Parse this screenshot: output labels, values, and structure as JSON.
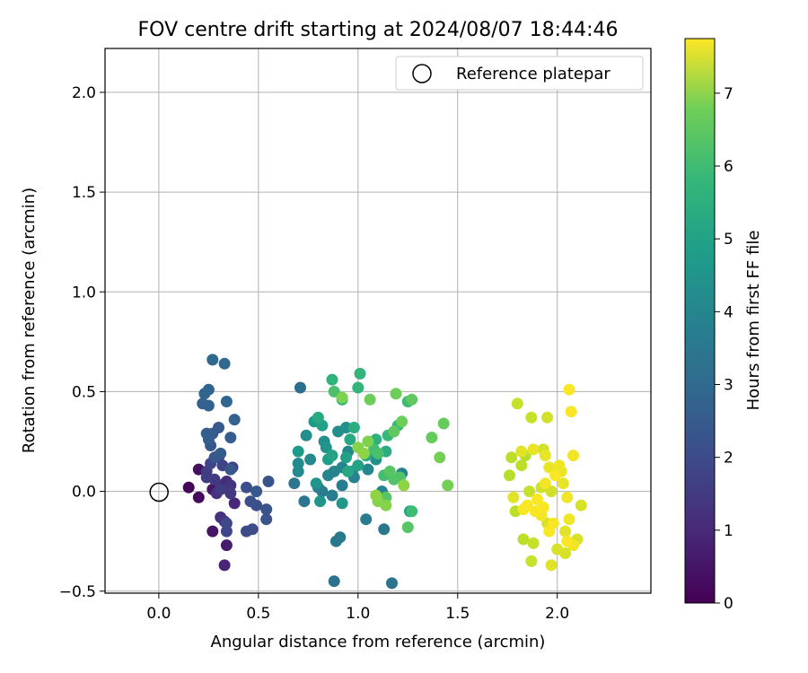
{
  "chart_data": {
    "type": "scatter",
    "title": "FOV centre drift starting at 2024/08/07 18:44:46",
    "xlabel": "Angular distance from reference (arcmin)",
    "ylabel": "Rotation from reference (arcmin)",
    "xlim": [
      -0.27,
      2.47
    ],
    "ylim": [
      -0.51,
      2.22
    ],
    "xticks": [
      0.0,
      0.5,
      1.0,
      1.5,
      2.0
    ],
    "xtick_labels": [
      "0.0",
      "0.5",
      "1.0",
      "1.5",
      "2.0"
    ],
    "yticks": [
      -0.5,
      0.0,
      0.5,
      1.0,
      1.5,
      2.0
    ],
    "ytick_labels": [
      "−0.5",
      "0.0",
      "0.5",
      "1.0",
      "1.5",
      "2.0"
    ],
    "grid": true,
    "legend": {
      "location": "top-right",
      "entries": [
        {
          "label": "Reference platepar",
          "marker": "open-circle"
        }
      ]
    },
    "reference_point": {
      "x": 0.0,
      "y": 0.0
    },
    "colorbar": {
      "label": "Hours from first FF file",
      "colormap": "viridis",
      "range": [
        0,
        7.75
      ],
      "ticks": [
        0,
        1,
        2,
        3,
        4,
        5,
        6,
        7
      ],
      "tick_labels": [
        "0",
        "1",
        "2",
        "3",
        "4",
        "5",
        "6",
        "7"
      ]
    },
    "points_columns": [
      "x",
      "y",
      "hours"
    ],
    "points": [
      [
        0.15,
        0.02,
        0.1
      ],
      [
        0.2,
        -0.03,
        0.2
      ],
      [
        0.2,
        0.11,
        0.3
      ],
      [
        0.27,
        -0.2,
        0.4
      ],
      [
        0.27,
        0.01,
        0.5
      ],
      [
        0.34,
        -0.27,
        0.6
      ],
      [
        0.33,
        -0.37,
        0.8
      ],
      [
        0.38,
        -0.06,
        0.9
      ],
      [
        0.34,
        0.05,
        1.0
      ],
      [
        0.31,
        0.03,
        1.0
      ],
      [
        0.29,
        -0.01,
        1.1
      ],
      [
        0.31,
        -0.13,
        1.1
      ],
      [
        0.33,
        -0.15,
        1.2
      ],
      [
        0.36,
        0.03,
        1.2
      ],
      [
        0.28,
        0.06,
        1.3
      ],
      [
        0.36,
        -0.01,
        1.3
      ],
      [
        0.24,
        0.07,
        1.4
      ],
      [
        0.31,
        0.01,
        1.4
      ],
      [
        0.24,
        0.1,
        1.4
      ],
      [
        0.37,
        0.12,
        1.5
      ],
      [
        0.3,
        0.17,
        1.5
      ],
      [
        0.32,
        0.13,
        1.6
      ],
      [
        0.26,
        0.14,
        1.6
      ],
      [
        0.3,
        0.18,
        1.6
      ],
      [
        0.34,
        -0.16,
        1.7
      ],
      [
        0.34,
        -0.2,
        1.7
      ],
      [
        0.44,
        -0.2,
        1.8
      ],
      [
        0.47,
        -0.19,
        1.8
      ],
      [
        0.44,
        0.02,
        1.9
      ],
      [
        0.49,
        -0.07,
        1.9
      ],
      [
        0.46,
        -0.05,
        1.9
      ],
      [
        0.55,
        0.05,
        2.0
      ],
      [
        0.54,
        -0.14,
        2.0
      ],
      [
        0.54,
        -0.09,
        2.0
      ],
      [
        0.49,
        0.0,
        2.1
      ],
      [
        0.36,
        0.11,
        2.1
      ],
      [
        0.28,
        0.17,
        2.1
      ],
      [
        0.26,
        0.23,
        2.1
      ],
      [
        0.31,
        0.19,
        2.2
      ],
      [
        0.27,
        0.29,
        2.2
      ],
      [
        0.3,
        0.32,
        2.2
      ],
      [
        0.24,
        0.29,
        2.3
      ],
      [
        0.36,
        0.27,
        2.3
      ],
      [
        0.25,
        0.26,
        2.3
      ],
      [
        0.38,
        0.36,
        2.4
      ],
      [
        0.25,
        0.43,
        2.4
      ],
      [
        0.22,
        0.44,
        2.4
      ],
      [
        0.34,
        0.45,
        2.5
      ],
      [
        0.25,
        0.51,
        2.5
      ],
      [
        0.23,
        0.49,
        2.5
      ],
      [
        0.27,
        0.66,
        2.6
      ],
      [
        0.33,
        0.64,
        2.6
      ],
      [
        0.71,
        0.52,
        2.8
      ],
      [
        0.88,
        -0.45,
        2.9
      ],
      [
        1.17,
        -0.46,
        2.9
      ],
      [
        0.68,
        0.04,
        3.0
      ],
      [
        0.73,
        -0.05,
        3.0
      ],
      [
        0.89,
        -0.25,
        3.1
      ],
      [
        0.91,
        -0.23,
        3.1
      ],
      [
        1.13,
        -0.19,
        3.1
      ],
      [
        1.04,
        -0.14,
        3.2
      ],
      [
        0.82,
        0.0,
        3.2
      ],
      [
        0.87,
        -0.02,
        3.3
      ],
      [
        0.92,
        0.03,
        3.3
      ],
      [
        0.8,
        0.02,
        3.3
      ],
      [
        1.12,
        0.0,
        3.4
      ],
      [
        1.22,
        0.09,
        3.4
      ],
      [
        0.98,
        0.07,
        3.4
      ],
      [
        0.85,
        0.08,
        3.5
      ],
      [
        0.88,
        0.1,
        3.5
      ],
      [
        0.92,
        0.12,
        3.5
      ],
      [
        0.97,
        0.1,
        3.6
      ],
      [
        1.05,
        0.11,
        3.6
      ],
      [
        0.95,
        0.2,
        3.6
      ],
      [
        0.76,
        0.16,
        3.7
      ],
      [
        0.7,
        0.1,
        3.7
      ],
      [
        0.7,
        0.14,
        3.7
      ],
      [
        0.74,
        0.28,
        3.8
      ],
      [
        0.83,
        0.25,
        3.8
      ],
      [
        0.9,
        0.3,
        3.8
      ],
      [
        0.94,
        0.32,
        3.9
      ],
      [
        1.09,
        0.16,
        3.9
      ],
      [
        0.81,
        -0.05,
        4.0
      ],
      [
        0.79,
        0.04,
        4.0
      ],
      [
        0.84,
        0.22,
        4.0
      ],
      [
        0.92,
        -0.06,
        4.1
      ],
      [
        0.7,
        0.2,
        4.2
      ],
      [
        0.78,
        0.35,
        4.2
      ],
      [
        0.85,
        0.16,
        4.3
      ],
      [
        1.26,
        -0.1,
        4.3
      ],
      [
        0.94,
        0.17,
        4.4
      ],
      [
        0.82,
        0.33,
        4.4
      ],
      [
        1.0,
        0.13,
        4.5
      ],
      [
        0.87,
        0.18,
        4.5
      ],
      [
        0.95,
        0.1,
        4.6
      ],
      [
        1.04,
        0.18,
        4.6
      ],
      [
        0.96,
        0.26,
        4.7
      ],
      [
        0.8,
        0.37,
        4.7
      ],
      [
        0.98,
        0.32,
        4.8
      ],
      [
        1.14,
        0.2,
        4.8
      ],
      [
        1.09,
        0.26,
        4.9
      ],
      [
        0.92,
        0.46,
        5.0
      ],
      [
        0.87,
        0.56,
        5.0
      ],
      [
        1.0,
        0.52,
        5.1
      ],
      [
        1.01,
        0.59,
        5.1
      ],
      [
        1.15,
        0.28,
        5.2
      ],
      [
        1.2,
        0.33,
        5.2
      ],
      [
        1.25,
        0.45,
        5.3
      ],
      [
        1.27,
        -0.1,
        5.3
      ],
      [
        1.13,
        0.08,
        5.4
      ],
      [
        1.08,
        0.21,
        5.4
      ],
      [
        1.1,
        0.19,
        5.5
      ],
      [
        0.88,
        0.5,
        5.5
      ],
      [
        1.18,
        0.06,
        5.6
      ],
      [
        1.21,
        0.07,
        5.6
      ],
      [
        1.14,
        -0.03,
        5.7
      ],
      [
        1.16,
        0.1,
        5.7
      ],
      [
        1.25,
        -0.18,
        5.7
      ],
      [
        1.27,
        0.46,
        5.8
      ],
      [
        1.18,
        0.3,
        5.8
      ],
      [
        1.37,
        0.27,
        5.9
      ],
      [
        1.43,
        0.34,
        5.9
      ],
      [
        1.06,
        0.46,
        6.0
      ],
      [
        1.19,
        0.49,
        6.0
      ],
      [
        1.22,
        0.35,
        6.0
      ],
      [
        1.41,
        0.17,
        6.1
      ],
      [
        1.45,
        0.03,
        6.1
      ],
      [
        1.05,
        0.25,
        6.2
      ],
      [
        0.92,
        0.47,
        6.2
      ],
      [
        1.0,
        0.22,
        6.3
      ],
      [
        1.1,
        -0.05,
        6.3
      ],
      [
        1.14,
        -0.07,
        6.3
      ],
      [
        1.09,
        -0.02,
        6.4
      ],
      [
        1.03,
        0.19,
        6.4
      ],
      [
        1.23,
        0.03,
        6.4
      ],
      [
        1.76,
        0.08,
        6.9
      ],
      [
        1.84,
        0.18,
        6.9
      ],
      [
        1.82,
        0.13,
        7.0
      ],
      [
        1.83,
        -0.24,
        7.0
      ],
      [
        1.79,
        -0.1,
        7.0
      ],
      [
        1.77,
        0.17,
        7.0
      ],
      [
        1.8,
        0.44,
        7.1
      ],
      [
        1.87,
        0.37,
        7.1
      ],
      [
        1.87,
        -0.35,
        7.1
      ],
      [
        1.88,
        -0.26,
        7.1
      ],
      [
        1.86,
        0.0,
        7.1
      ],
      [
        1.92,
        0.02,
        7.2
      ],
      [
        1.95,
        0.37,
        7.2
      ],
      [
        1.93,
        0.21,
        7.2
      ],
      [
        1.97,
        0.0,
        7.2
      ],
      [
        1.95,
        -0.16,
        7.3
      ],
      [
        2.0,
        -0.29,
        7.3
      ],
      [
        2.04,
        -0.31,
        7.3
      ],
      [
        2.12,
        -0.07,
        7.3
      ],
      [
        2.1,
        -0.24,
        7.3
      ],
      [
        2.04,
        -0.2,
        7.4
      ],
      [
        1.97,
        -0.37,
        7.4
      ],
      [
        1.78,
        -0.03,
        7.4
      ],
      [
        1.82,
        0.2,
        7.4
      ],
      [
        1.88,
        0.21,
        7.5
      ],
      [
        1.94,
        0.18,
        7.5
      ],
      [
        1.96,
        0.12,
        7.5
      ],
      [
        1.99,
        0.11,
        7.5
      ],
      [
        2.03,
        0.04,
        7.5
      ],
      [
        2.02,
        0.1,
        7.5
      ],
      [
        2.05,
        -0.03,
        7.6
      ],
      [
        2.08,
        -0.27,
        7.6
      ],
      [
        2.08,
        0.18,
        7.6
      ],
      [
        2.06,
        -0.14,
        7.6
      ],
      [
        2.01,
        0.13,
        7.6
      ],
      [
        1.94,
        0.04,
        7.6
      ],
      [
        1.92,
        -0.12,
        7.6
      ],
      [
        1.89,
        -0.1,
        7.7
      ],
      [
        1.93,
        -0.08,
        7.7
      ],
      [
        1.98,
        -0.16,
        7.7
      ],
      [
        1.96,
        -0.2,
        7.7
      ],
      [
        2.06,
        0.51,
        7.7
      ],
      [
        2.07,
        0.4,
        7.7
      ],
      [
        2.05,
        -0.25,
        7.7
      ],
      [
        1.85,
        -0.07,
        7.7
      ],
      [
        1.83,
        -0.09,
        7.7
      ],
      [
        1.9,
        -0.04,
        7.7
      ],
      [
        1.99,
        0.08,
        7.7
      ]
    ]
  }
}
